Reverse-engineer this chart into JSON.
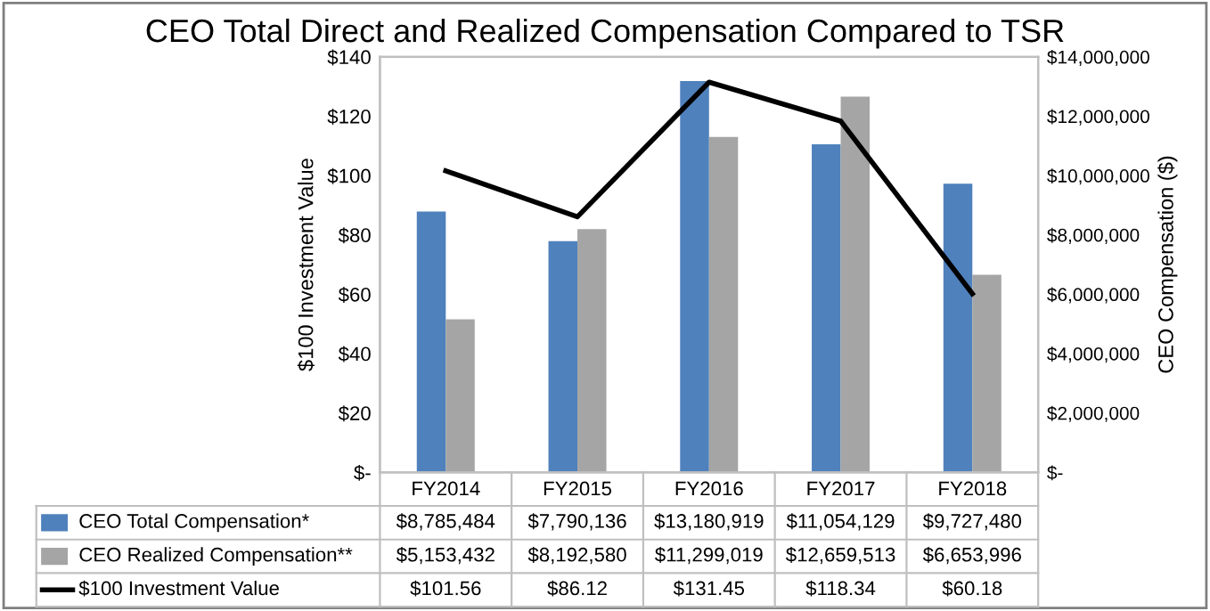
{
  "chart_data": {
    "type": "bar",
    "title": "CEO Total Direct and Realized Compensation Compared to TSR",
    "ylabel": "$100 Investment Value",
    "y2label": "CEO Compensation ($)",
    "categories": [
      "FY2014",
      "FY2015",
      "FY2016",
      "FY2017",
      "FY2018"
    ],
    "series": [
      {
        "name": "CEO Total Compensation*",
        "axis": "y2",
        "color": "#4f81bd",
        "values": [
          8785484,
          7790136,
          13180919,
          11054129,
          9727480
        ],
        "value_labels": [
          "$8,785,484",
          "$7,790,136",
          "$13,180,919",
          "$11,054,129",
          "$9,727,480"
        ]
      },
      {
        "name": "CEO Realized Compensation**",
        "axis": "y2",
        "color": "#a5a5a5",
        "values": [
          5153432,
          8192580,
          11299019,
          12659513,
          6653996
        ],
        "value_labels": [
          "$5,153,432",
          "$8,192,580",
          "$11,299,019",
          "$12,659,513",
          "$6,653,996"
        ]
      },
      {
        "name": "$100 Investment Value",
        "type": "line",
        "axis": "y",
        "color": "#000000",
        "values": [
          101.56,
          86.12,
          131.45,
          118.34,
          60.18
        ],
        "value_labels": [
          "$101.56",
          "$86.12",
          "$131.45",
          "$118.34",
          "$60.18"
        ]
      }
    ],
    "ylim": [
      0,
      140
    ],
    "yticks": [
      {
        "value": 0,
        "label": "$-"
      },
      {
        "value": 20,
        "label": "$20"
      },
      {
        "value": 40,
        "label": "$40"
      },
      {
        "value": 60,
        "label": "$60"
      },
      {
        "value": 80,
        "label": "$80"
      },
      {
        "value": 100,
        "label": "$100"
      },
      {
        "value": 120,
        "label": "$120"
      },
      {
        "value": 140,
        "label": "$140"
      }
    ],
    "y2lim": [
      0,
      14000000
    ],
    "y2ticks": [
      {
        "value": 0,
        "label": "$-"
      },
      {
        "value": 2000000,
        "label": "$2,000,000"
      },
      {
        "value": 4000000,
        "label": "$4,000,000"
      },
      {
        "value": 6000000,
        "label": "$6,000,000"
      },
      {
        "value": 8000000,
        "label": "$8,000,000"
      },
      {
        "value": 10000000,
        "label": "$10,000,000"
      },
      {
        "value": 12000000,
        "label": "$12,000,000"
      },
      {
        "value": 14000000,
        "label": "$14,000,000"
      }
    ],
    "legend": "bottom",
    "line_style": "solid",
    "marker": "none"
  }
}
